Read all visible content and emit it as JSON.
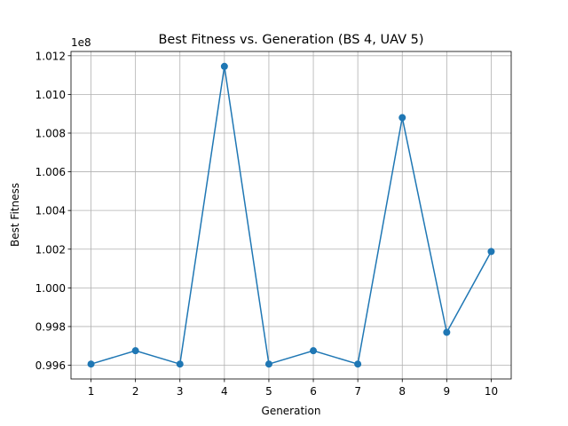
{
  "chart_data": {
    "type": "line",
    "title": "Best Fitness vs. Generation (BS 4, UAV 5)",
    "xlabel": "Generation",
    "ylabel": "Best Fitness",
    "y_offset_label": "1e8",
    "x": [
      1,
      2,
      3,
      4,
      5,
      6,
      7,
      8,
      9,
      10
    ],
    "x_tick_labels": [
      "1",
      "2",
      "3",
      "4",
      "5",
      "6",
      "7",
      "8",
      "9",
      "10"
    ],
    "y_ticks": [
      0.996,
      0.998,
      1.0,
      1.002,
      1.004,
      1.006,
      1.008,
      1.01,
      1.012
    ],
    "y_tick_labels": [
      "0.996",
      "0.998",
      "1.000",
      "1.002",
      "1.004",
      "1.006",
      "1.008",
      "1.010",
      "1.012"
    ],
    "series": [
      {
        "values": [
          0.99606,
          0.99675,
          0.99606,
          1.01145,
          0.99606,
          0.99675,
          0.99606,
          1.0088,
          0.9977,
          1.00188
        ]
      }
    ],
    "xlim": [
      0.55,
      10.45
    ],
    "ylim": [
      0.99529,
      1.01222
    ],
    "grid": true,
    "marker": "circle",
    "color": "#1f77b4"
  }
}
